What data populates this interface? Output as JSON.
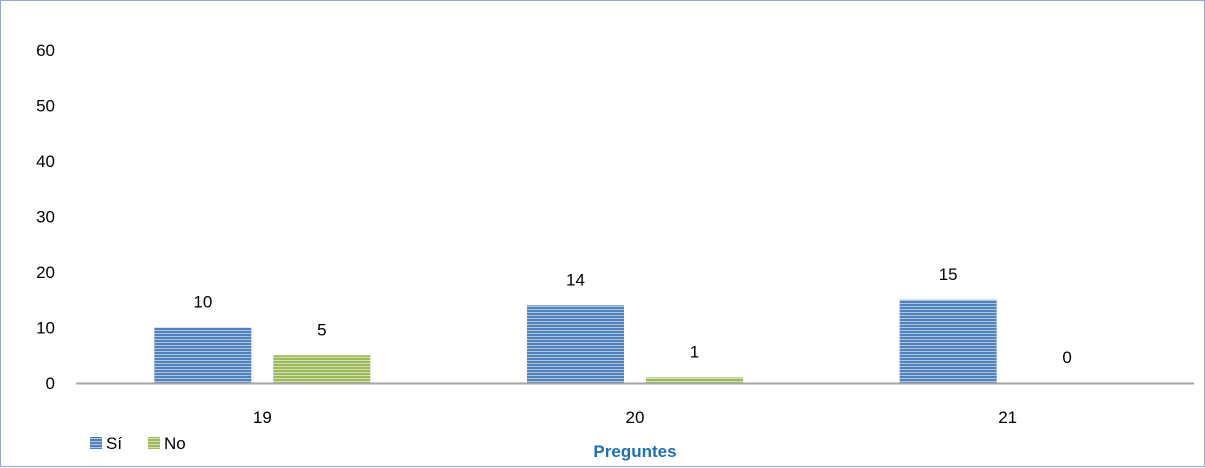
{
  "chart_data": {
    "type": "bar",
    "categories": [
      "19",
      "20",
      "21"
    ],
    "series": [
      {
        "name": "Sí",
        "values": [
          10,
          14,
          15
        ],
        "color": "#4f81bd"
      },
      {
        "name": "No",
        "values": [
          5,
          1,
          0
        ],
        "color": "#9bbb59"
      }
    ],
    "yticks": [
      0,
      10,
      20,
      30,
      40,
      50,
      60
    ],
    "ylim": [
      0,
      60
    ],
    "xlabel": "Preguntes",
    "ylabel": "",
    "title": "",
    "grid": false,
    "legend_position": "bottom-left",
    "bar_pattern": "horizontal-stripes"
  }
}
